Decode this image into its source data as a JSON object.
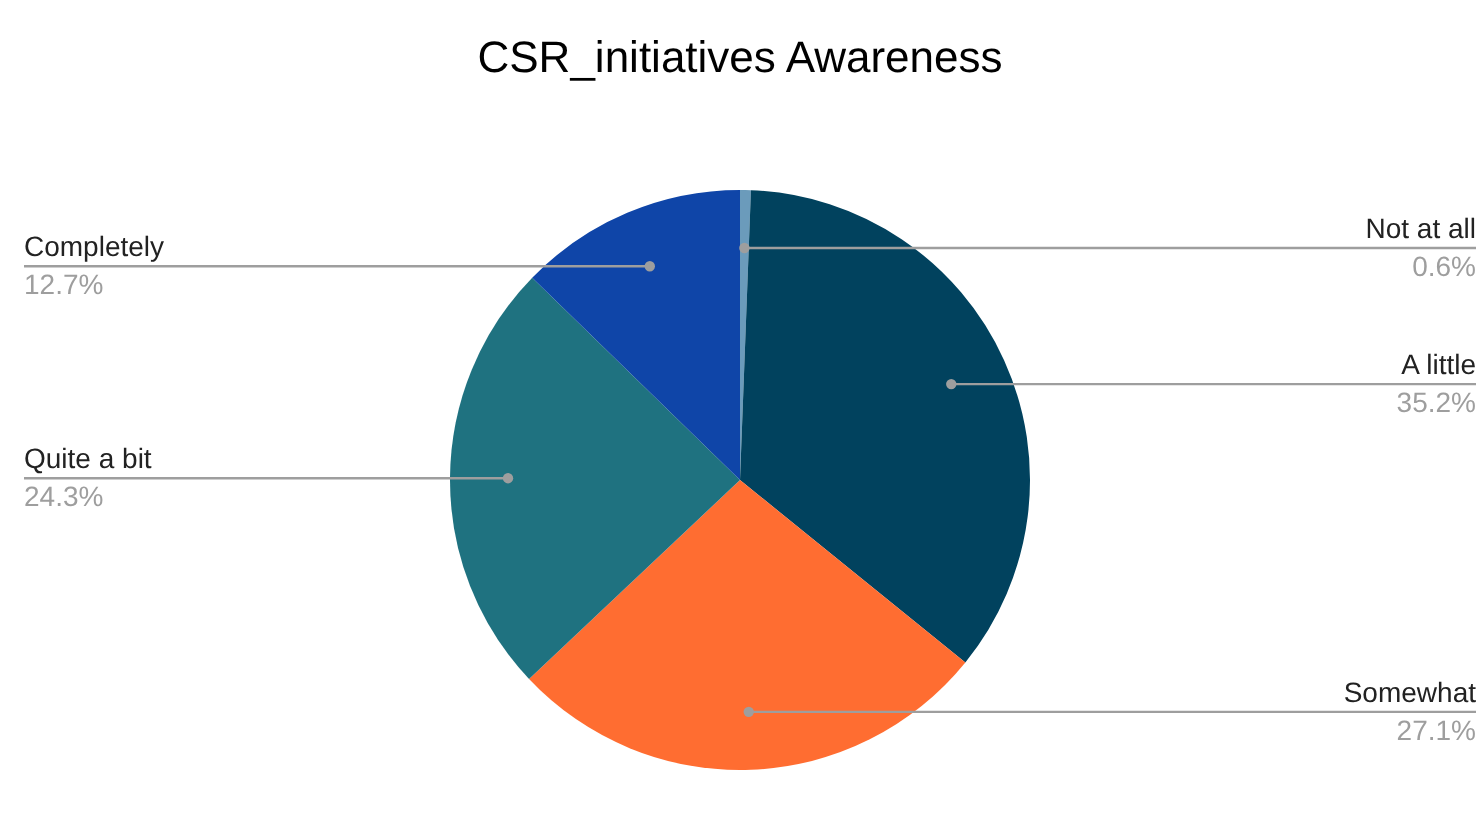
{
  "chart_data": {
    "type": "pie",
    "title": "CSR_initiatives Awareness",
    "categories": [
      "Not at all",
      "A little",
      "Somewhat",
      "Quite a bit",
      "Completely"
    ],
    "values": [
      0.6,
      35.2,
      27.1,
      24.3,
      12.7
    ],
    "colors": [
      "#6b9bbb",
      "#01425e",
      "#ff6d31",
      "#1f7280",
      "#0f45a8"
    ],
    "value_labels": [
      "0.6%",
      "35.2%",
      "27.1%",
      "24.3%",
      "12.7%"
    ],
    "legend": false
  }
}
